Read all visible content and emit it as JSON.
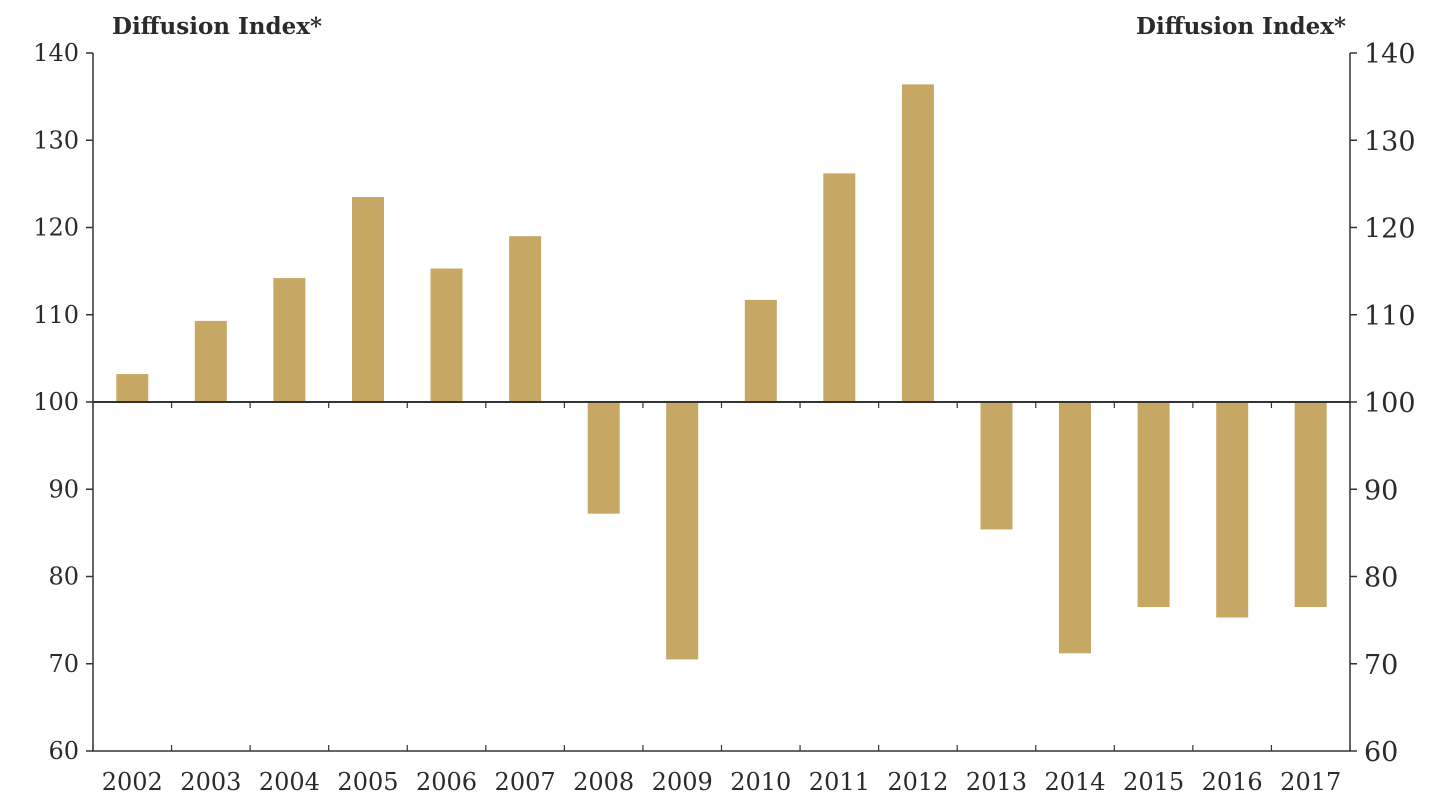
{
  "chart_data": {
    "type": "bar",
    "title": "",
    "ylabel_left": "Diffusion Index*",
    "ylabel_right": "Diffusion Index*",
    "xlabel": "",
    "categories": [
      "2002",
      "2003",
      "2004",
      "2005",
      "2006",
      "2007",
      "2008",
      "2009",
      "2010",
      "2011",
      "2012",
      "2013",
      "2014",
      "2015",
      "2016",
      "2017"
    ],
    "values": [
      103.2,
      109.3,
      114.2,
      123.5,
      115.3,
      119.0,
      87.2,
      70.5,
      111.7,
      126.2,
      136.4,
      85.4,
      71.2,
      76.5,
      75.3,
      76.5
    ],
    "baseline": 100,
    "ylim": [
      60,
      140
    ],
    "yticks": [
      60,
      70,
      80,
      90,
      100,
      110,
      120,
      130,
      140
    ],
    "bar_color": "#c6a763",
    "axis_color": "#333333",
    "grid": false,
    "legend": "none"
  }
}
